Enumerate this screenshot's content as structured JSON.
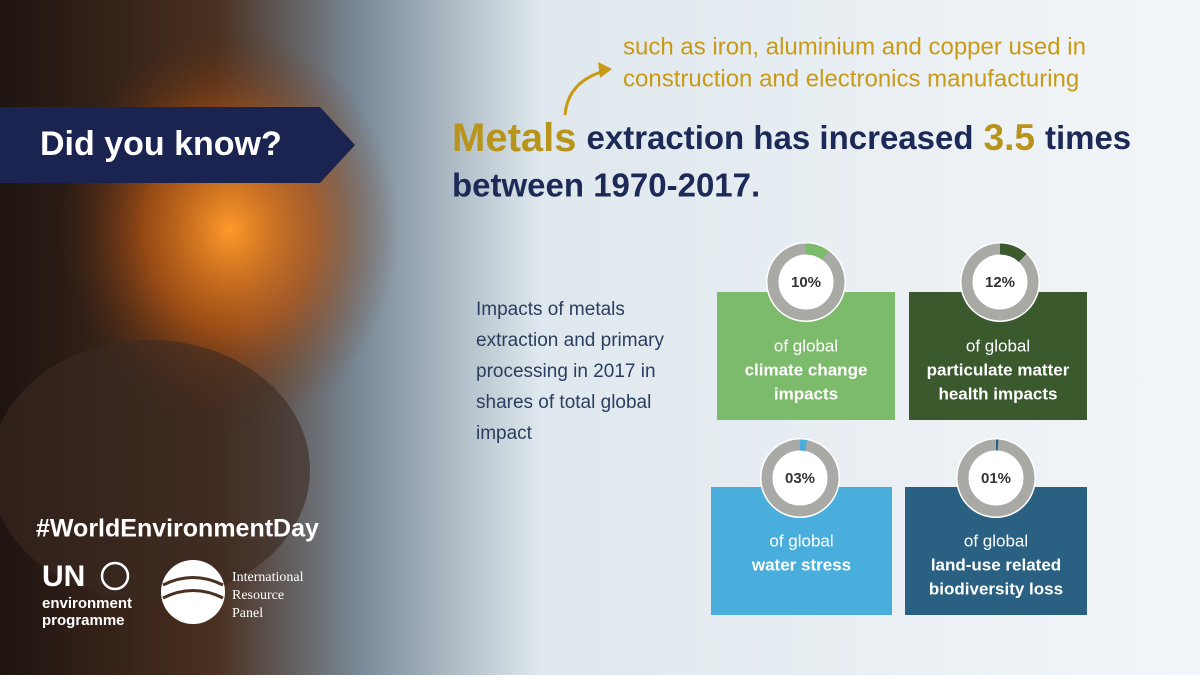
{
  "banner": "Did you know?",
  "note": {
    "lines": [
      "such as iron, aluminium and copper used in",
      "construction and electronics manufacturing"
    ]
  },
  "headline": {
    "parts": [
      "Metals",
      "extraction has increased",
      "3.5",
      "times"
    ],
    "line2": "between 1970-2017."
  },
  "side_text": {
    "lines": [
      "Impacts of metals",
      "extraction and primary",
      "processing in 2017 in",
      "shares of total global",
      "impact"
    ]
  },
  "cards": [
    {
      "value": 10,
      "value_label": "10%",
      "line1": "of global",
      "line2": "climate change",
      "line3": "impacts"
    },
    {
      "value": 12,
      "value_label": "12%",
      "line1": "of global",
      "line2": "particulate matter",
      "line3": "health impacts"
    },
    {
      "value": 3,
      "value_label": "03%",
      "line1": "of global",
      "line2": "water stress"
    },
    {
      "value": 1,
      "value_label": "01%",
      "line1": "of global",
      "line2": "land-use related",
      "line3": "biodiversity loss"
    }
  ],
  "footer": {
    "hashtag": "#WorldEnvironmentDay",
    "un": {
      "short": "UN",
      "line1": "environment",
      "line2": "programme"
    },
    "irp": {
      "line1": "International",
      "line2": "Resource",
      "line3": "Panel"
    }
  }
}
